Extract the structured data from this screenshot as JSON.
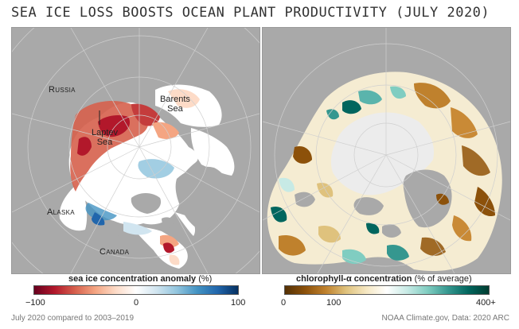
{
  "title": "Sea ice loss boosts ocean plant productivity (July 2020)",
  "left_map": {
    "labels": {
      "russia": "Russia",
      "barents": "Barents\nSea",
      "laptev": "Laptev\nSea",
      "alaska": "Alaska",
      "canada": "Canada"
    },
    "legend": {
      "title": "sea ice concentration anomaly",
      "unit": "(%)",
      "ticks": [
        "−100",
        "0",
        "100"
      ]
    }
  },
  "right_map": {
    "legend": {
      "title": "chlorophyll-α concentration",
      "unit": "(% of average)",
      "ticks": [
        "0",
        "100",
        "400+"
      ]
    }
  },
  "footer": {
    "left": "July 2020 compared to 2003–2019",
    "right": "NOAA Climate.gov, Data: 2020 ARC"
  },
  "colors": {
    "land": "#a9a9a9",
    "ocean": "#ffffff",
    "ice": "#ececec",
    "red": "#b2182b",
    "blue": "#2166ac",
    "brown": "#8c510a",
    "teal": "#01665e"
  }
}
